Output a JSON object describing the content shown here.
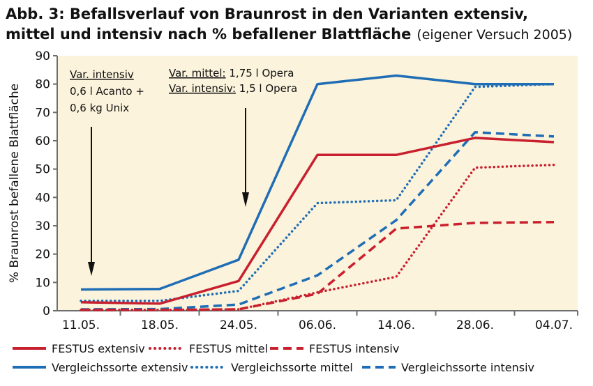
{
  "chart_data": {
    "type": "line",
    "title_bold_line1": "Abb. 3: Befallsverlauf von Braunrost in den Varianten extensiv,",
    "title_bold_line2": "mittel und intensiv nach % befallener Blattfläche",
    "title_suffix": "(eigener Versuch 2005)",
    "ylabel": "% Braunrost befallene Blattfläche",
    "xlabel": "",
    "categories": [
      "11.05.",
      "18.05.",
      "24.05.",
      "06.06.",
      "14.06.",
      "28.06.",
      "04.07."
    ],
    "ylim": [
      0,
      90
    ],
    "yticks": [
      0,
      10,
      20,
      30,
      40,
      50,
      60,
      70,
      80,
      90
    ],
    "grid": false,
    "legend_position": "bottom",
    "series": [
      {
        "name": "FESTUS extensiv",
        "color": "#c8202e",
        "style": "solid",
        "values": [
          3,
          2.5,
          10.5,
          55,
          55,
          61,
          59.5
        ]
      },
      {
        "name": "FESTUS mittel",
        "color": "#c8202e",
        "style": "dotted",
        "values": [
          0.3,
          0.3,
          0.5,
          6.5,
          12,
          50.5,
          51.5
        ]
      },
      {
        "name": "FESTUS intensiv",
        "color": "#c8202e",
        "style": "dashed",
        "values": [
          0.3,
          0.3,
          0.5,
          6,
          29,
          31,
          31.3
        ]
      },
      {
        "name": "Vergleichssorte extensiv",
        "color": "#1f6db5",
        "style": "solid",
        "values": [
          7.5,
          7.7,
          18,
          80,
          83,
          80,
          80
        ]
      },
      {
        "name": "Vergleichssorte mittel",
        "color": "#1f6db5",
        "style": "dotted",
        "values": [
          3.5,
          3.5,
          7,
          38,
          39,
          79,
          80
        ]
      },
      {
        "name": "Vergleichssorte intensiv",
        "color": "#1f6db5",
        "style": "dashed",
        "values": [
          0.5,
          0.6,
          2.2,
          12.5,
          32,
          63,
          61.5
        ]
      }
    ],
    "annotations": [
      {
        "lines": [
          "Var. intensiv",
          "0,6 l Acanto +",
          "0,6 kg Unix"
        ],
        "underlined_first_line": true,
        "arrow_at_category": "11.05."
      },
      {
        "lines": [
          "Var. mittel: 1,75 l Opera",
          "Var. intensiv: 1,5 l Opera"
        ],
        "underlined_prefixes": [
          "Var. mittel:",
          "Var. intensiv:"
        ],
        "arrow_at_category": "24.05."
      }
    ],
    "plot_background": "#fbf3dc",
    "axis_color": "#6e6e6e"
  }
}
